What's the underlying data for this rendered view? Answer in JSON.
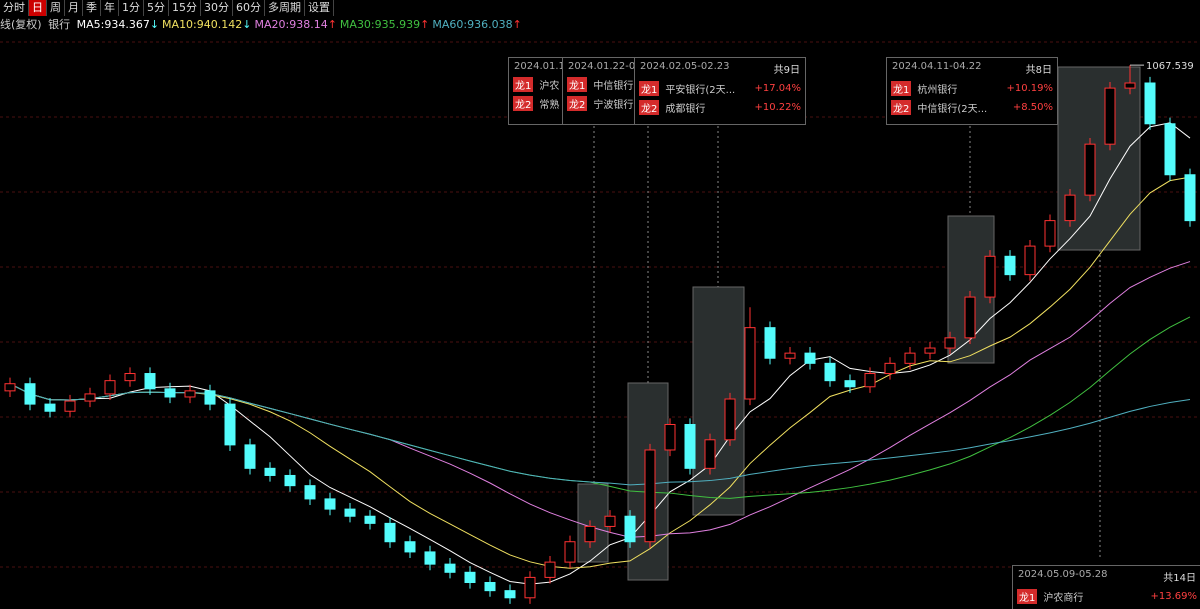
{
  "toolbar": [
    "分时",
    "日",
    "周",
    "月",
    "季",
    "年",
    "1分",
    "5分",
    "15分",
    "30分",
    "60分",
    "多周期",
    "设置"
  ],
  "active_tab": "日",
  "chart_data": {
    "type": "candlestick",
    "title": "线(复权)",
    "subtitle": "银行",
    "ma": [
      {
        "name": "MA5:",
        "value": 934.367,
        "arrow": "↓",
        "color": "#ffffff"
      },
      {
        "name": "MA10:",
        "value": 940.142,
        "arrow": "↓",
        "color": "#f0e060"
      },
      {
        "name": "MA20:",
        "value": 938.14,
        "arrow": "↑",
        "color": "#e080e0"
      },
      {
        "name": "MA30:",
        "value": 935.939,
        "arrow": "↑",
        "color": "#40c040"
      },
      {
        "name": "MA60:",
        "value": 936.038,
        "arrow": "↑",
        "color": "#50b0c0"
      }
    ],
    "up_color": "#ff3232",
    "down_color": "#54fcfc",
    "ylim": [
      534,
      1102
    ],
    "high_label": 1067.539,
    "ohlc": [
      [
        748,
        761,
        742,
        755
      ],
      [
        755,
        761,
        729,
        735
      ],
      [
        735,
        741,
        722,
        728
      ],
      [
        728,
        744,
        722,
        738
      ],
      [
        738,
        751,
        732,
        745
      ],
      [
        745,
        764,
        739,
        758
      ],
      [
        758,
        771,
        752,
        765
      ],
      [
        765,
        771,
        744,
        750
      ],
      [
        750,
        756,
        736,
        742
      ],
      [
        742,
        754,
        736,
        748
      ],
      [
        748,
        754,
        729,
        735
      ],
      [
        735,
        741,
        689,
        695
      ],
      [
        695,
        701,
        666,
        672
      ],
      [
        672,
        678,
        659,
        665
      ],
      [
        665,
        671,
        649,
        655
      ],
      [
        655,
        661,
        636,
        642
      ],
      [
        642,
        648,
        626,
        632
      ],
      [
        632,
        638,
        619,
        625
      ],
      [
        625,
        631,
        612,
        618
      ],
      [
        618,
        624,
        594,
        600
      ],
      [
        600,
        606,
        584,
        590
      ],
      [
        590,
        596,
        572,
        578
      ],
      [
        578,
        584,
        564,
        570
      ],
      [
        570,
        576,
        554,
        560
      ],
      [
        560,
        566,
        546,
        552
      ],
      [
        552,
        558,
        539,
        545
      ],
      [
        545,
        571,
        539,
        565
      ],
      [
        565,
        586,
        559,
        580
      ],
      [
        580,
        606,
        574,
        600
      ],
      [
        600,
        621,
        594,
        615
      ],
      [
        615,
        631,
        609,
        625
      ],
      [
        625,
        631,
        594,
        600
      ],
      [
        600,
        696,
        594,
        690
      ],
      [
        690,
        721,
        684,
        715
      ],
      [
        715,
        721,
        666,
        672
      ],
      [
        672,
        706,
        666,
        700
      ],
      [
        700,
        746,
        694,
        740
      ],
      [
        740,
        830,
        734,
        810
      ],
      [
        810,
        816,
        774,
        780
      ],
      [
        780,
        791,
        774,
        785
      ],
      [
        785,
        791,
        769,
        775
      ],
      [
        775,
        781,
        752,
        758
      ],
      [
        758,
        764,
        746,
        752
      ],
      [
        752,
        771,
        746,
        765
      ],
      [
        765,
        781,
        759,
        775
      ],
      [
        775,
        791,
        769,
        785
      ],
      [
        785,
        796,
        779,
        790
      ],
      [
        790,
        806,
        784,
        800
      ],
      [
        800,
        846,
        794,
        840
      ],
      [
        840,
        886,
        834,
        880
      ],
      [
        880,
        886,
        856,
        862
      ],
      [
        862,
        896,
        856,
        890
      ],
      [
        890,
        921,
        884,
        915
      ],
      [
        915,
        946,
        909,
        940
      ],
      [
        940,
        996,
        934,
        990
      ],
      [
        990,
        1051,
        984,
        1045
      ],
      [
        1045,
        1067.539,
        1039,
        1050
      ],
      [
        1050,
        1056,
        1004,
        1010
      ],
      [
        1010,
        1016,
        954,
        960
      ],
      [
        960,
        966,
        909,
        915
      ]
    ]
  },
  "boxes": [
    {
      "period": "2024.01.1",
      "rows": [
        {
          "rank": "龙1",
          "name": "沪农"
        },
        {
          "rank": "龙2",
          "name": "常熟"
        }
      ]
    },
    {
      "period": "2024.01.22-0",
      "rows": [
        {
          "rank": "龙1",
          "name": "中信银行"
        },
        {
          "rank": "龙2",
          "name": "宁波银行"
        }
      ]
    },
    {
      "period": "2024.02.05-02.23",
      "days": "共9日",
      "rows": [
        {
          "rank": "龙1",
          "name": "平安银行(2天...",
          "pct": "+17.04%"
        },
        {
          "rank": "龙2",
          "name": "成都银行",
          "pct": "+10.22%"
        }
      ]
    },
    {
      "period": "2024.04.11-04.22",
      "days": "共8日",
      "rows": [
        {
          "rank": "龙1",
          "name": "杭州银行",
          "pct": "+10.19%"
        },
        {
          "rank": "龙2",
          "name": "中信银行(2天...",
          "pct": "+8.50%"
        }
      ]
    },
    {
      "period": "2024.05.09-05.28",
      "days": "共14日",
      "rows": [
        {
          "rank": "龙1",
          "name": "沪农商行",
          "pct": "+13.69%"
        }
      ]
    }
  ]
}
